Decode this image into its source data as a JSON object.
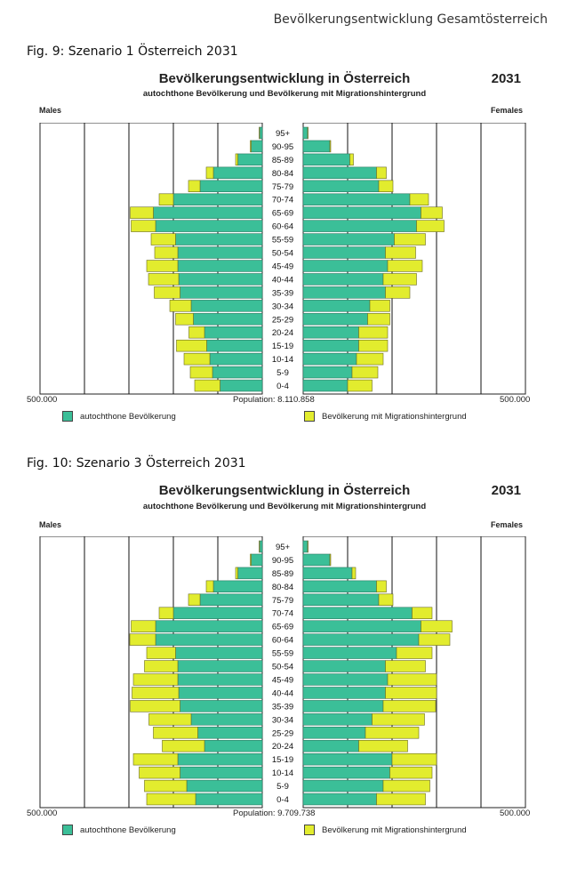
{
  "page_header": "Bevölkerungsentwicklung Gesamtösterreich",
  "colors": {
    "native": "#3bbf98",
    "migration": "#e2ec2e",
    "grid": "#111111",
    "border": "#222222"
  },
  "legend": {
    "native": "autochthone Bevölkerung",
    "migration": "Bevölkerung mit Migrationshintergrund"
  },
  "age_groups": [
    "95+",
    "90-95",
    "85-89",
    "80-84",
    "75-79",
    "70-74",
    "65-69",
    "60-64",
    "55-59",
    "50-54",
    "45-49",
    "40-44",
    "35-39",
    "30-34",
    "25-29",
    "20-24",
    "15-19",
    "10-14",
    "5-9",
    "0-4"
  ],
  "figures": [
    {
      "caption": "Fig. 9: Szenario 1 Österreich  2031",
      "title": "Bevölkerungsentwicklung in Österreich",
      "year": "2031",
      "subtitle": "autochthone Bevölkerung und Bevölkerung mit Migrationshintergrund",
      "males_label": "Males",
      "females_label": "Females",
      "axis_left": "500.000",
      "axis_right": "500.000",
      "population": "Population:  8.110.858"
    },
    {
      "caption": "Fig. 10: Szenario 3 Österreich 2031",
      "title": "Bevölkerungsentwicklung in Österreich",
      "year": "2031",
      "subtitle": "autochthone Bevölkerung und Bevölkerung mit Migrationshintergrund",
      "males_label": "Males",
      "females_label": "Females",
      "axis_left": "500.000",
      "axis_right": "500.000",
      "population": "Population:  9.709.738"
    }
  ],
  "chart_data": [
    {
      "type": "bar",
      "title": "Bevölkerungsentwicklung in Österreich",
      "subtitle": "autochthone Bevölkerung und Bevölkerung mit Migrationshintergrund",
      "categories": [
        "95+",
        "90-95",
        "85-89",
        "80-84",
        "75-79",
        "70-74",
        "65-69",
        "60-64",
        "55-59",
        "50-54",
        "45-49",
        "40-44",
        "35-39",
        "30-34",
        "25-29",
        "20-24",
        "15-19",
        "10-14",
        "5-9",
        "0-4"
      ],
      "xlim": [
        -500000,
        500000
      ],
      "series": [
        {
          "name": "autochthone Bevölkerung",
          "sex": "Males",
          "values": [
            6000,
            25000,
            55000,
            110000,
            140000,
            200000,
            245000,
            240000,
            195000,
            190000,
            190000,
            188000,
            185000,
            160000,
            155000,
            130000,
            125000,
            118000,
            112000,
            95000
          ]
        },
        {
          "name": "Bevölkerung mit Migrationshintergrund",
          "sex": "Males",
          "values": [
            1000,
            2000,
            5000,
            16000,
            26000,
            32000,
            52000,
            55000,
            55000,
            52000,
            70000,
            68000,
            58000,
            48000,
            40000,
            35000,
            68000,
            58000,
            50000,
            57000
          ]
        },
        {
          "name": "autochthone Bevölkerung",
          "sex": "Females",
          "values": [
            10000,
            60000,
            105000,
            165000,
            170000,
            240000,
            265000,
            255000,
            205000,
            185000,
            190000,
            180000,
            185000,
            150000,
            145000,
            125000,
            125000,
            120000,
            110000,
            100000
          ]
        },
        {
          "name": "Bevölkerung mit Migrationshintergrund",
          "sex": "Females",
          "values": [
            1000,
            2000,
            8000,
            22000,
            32000,
            42000,
            48000,
            62000,
            70000,
            68000,
            78000,
            75000,
            55000,
            45000,
            50000,
            65000,
            65000,
            60000,
            58000,
            55000
          ]
        }
      ]
    },
    {
      "type": "bar",
      "title": "Bevölkerungsentwicklung in Österreich",
      "subtitle": "autochthone Bevölkerung und Bevölkerung mit Migrationshintergrund",
      "categories": [
        "95+",
        "90-95",
        "85-89",
        "80-84",
        "75-79",
        "70-74",
        "65-69",
        "60-64",
        "55-59",
        "50-54",
        "45-49",
        "40-44",
        "35-39",
        "30-34",
        "25-29",
        "20-24",
        "15-19",
        "10-14",
        "5-9",
        "0-4"
      ],
      "xlim": [
        -500000,
        500000
      ],
      "series": [
        {
          "name": "autochthone Bevölkerung",
          "sex": "Males",
          "values": [
            6000,
            25000,
            55000,
            110000,
            140000,
            200000,
            240000,
            240000,
            195000,
            190000,
            190000,
            188000,
            185000,
            160000,
            145000,
            130000,
            190000,
            185000,
            170000,
            150000
          ]
        },
        {
          "name": "Bevölkerung mit Migrationshintergrund",
          "sex": "Males",
          "values": [
            1000,
            2000,
            5000,
            16000,
            26000,
            32000,
            55000,
            58000,
            65000,
            75000,
            100000,
            105000,
            112000,
            95000,
            100000,
            95000,
            100000,
            92000,
            95000,
            110000
          ]
        },
        {
          "name": "autochthone Bevölkerung",
          "sex": "Females",
          "values": [
            10000,
            60000,
            110000,
            165000,
            170000,
            245000,
            265000,
            260000,
            210000,
            185000,
            190000,
            185000,
            180000,
            155000,
            140000,
            125000,
            200000,
            195000,
            180000,
            165000
          ]
        },
        {
          "name": "Bevölkerung mit Migrationshintergrund",
          "sex": "Females",
          "values": [
            1000,
            2000,
            8000,
            22000,
            32000,
            45000,
            70000,
            70000,
            80000,
            90000,
            110000,
            115000,
            118000,
            118000,
            120000,
            110000,
            100000,
            95000,
            105000,
            110000
          ]
        }
      ]
    }
  ]
}
